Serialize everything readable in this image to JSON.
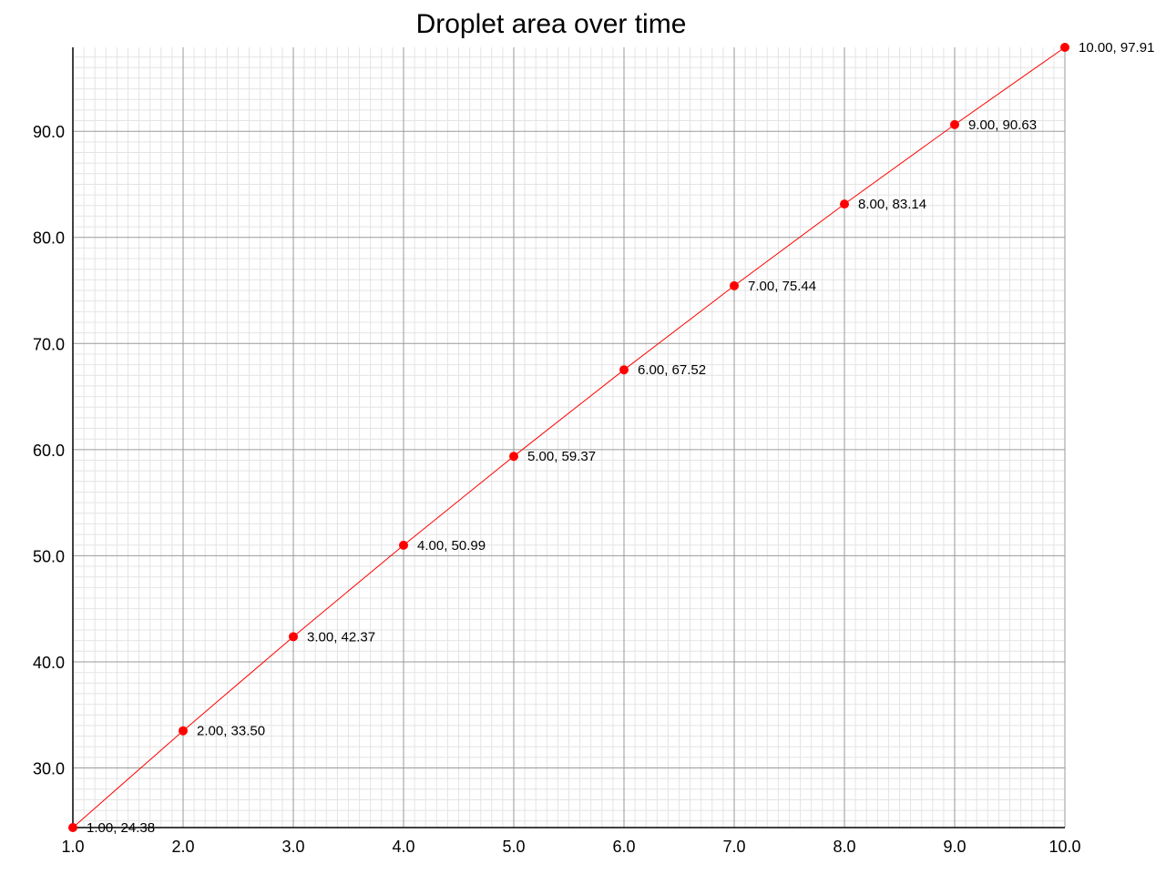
{
  "chart_data": {
    "type": "line",
    "title": "Droplet area over time",
    "xlabel": "",
    "ylabel": "",
    "xlim": [
      1.0,
      10.0
    ],
    "ylim": [
      24.38,
      97.91
    ],
    "x_ticks": [
      "1.0",
      "2.0",
      "3.0",
      "4.0",
      "5.0",
      "6.0",
      "7.0",
      "8.0",
      "9.0",
      "10.0"
    ],
    "y_ticks": [
      "30.0",
      "40.0",
      "50.0",
      "60.0",
      "70.0",
      "80.0",
      "90.0"
    ],
    "grid": true,
    "series": [
      {
        "color": "#ff0000",
        "x": [
          1.0,
          2.0,
          3.0,
          4.0,
          5.0,
          6.0,
          7.0,
          8.0,
          9.0,
          10.0
        ],
        "y": [
          24.38,
          33.5,
          42.37,
          50.99,
          59.37,
          67.52,
          75.44,
          83.14,
          90.63,
          97.91
        ],
        "labels": [
          "1.00, 24.38",
          "2.00, 33.50",
          "3.00, 42.37",
          "4.00, 50.99",
          "5.00, 59.37",
          "6.00, 67.52",
          "7.00, 75.44",
          "8.00, 83.14",
          "9.00, 90.63",
          "10.00, 97.91"
        ]
      }
    ]
  }
}
